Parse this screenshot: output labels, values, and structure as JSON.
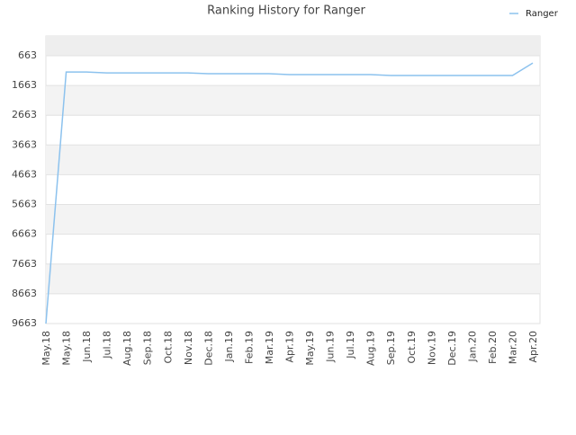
{
  "chart_data": {
    "type": "line",
    "title": "Ranking History for Ranger",
    "categories": [
      "May.18",
      "May.18",
      "Jun.18",
      "Jul.18",
      "Aug.18",
      "Sep.18",
      "Oct.18",
      "Nov.18",
      "Dec.18",
      "Jan.19",
      "Feb.19",
      "Mar.19",
      "Apr.19",
      "May.19",
      "Jun.19",
      "Jul.19",
      "Aug.19",
      "Sep.19",
      "Oct.19",
      "Nov.19",
      "Dec.19",
      "Jan.20",
      "Feb.20",
      "Mar.20",
      "Apr.20"
    ],
    "series": [
      {
        "name": "Ranger",
        "color": "#8cc2ee",
        "values": [
          9663,
          1210,
          1210,
          1240,
          1240,
          1240,
          1240,
          1240,
          1270,
          1270,
          1270,
          1270,
          1300,
          1300,
          1300,
          1300,
          1300,
          1330,
          1330,
          1330,
          1330,
          1330,
          1330,
          1330,
          909
        ]
      }
    ],
    "ylim": [
      0,
      9663
    ],
    "inverted_y": true,
    "yticks": [
      663,
      1663,
      2663,
      3663,
      4663,
      5663,
      6663,
      7663,
      8663,
      9663
    ],
    "grid": true,
    "legend": "top-right"
  }
}
